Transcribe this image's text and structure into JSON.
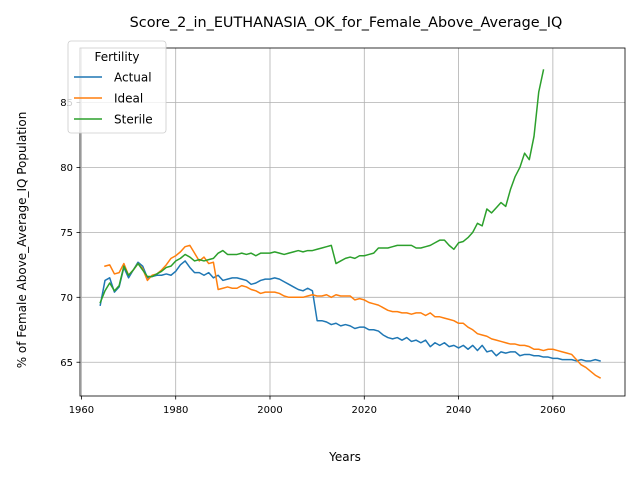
{
  "chart_data": {
    "type": "line",
    "title": "Score_2_in_EUTHANASIA_OK_for_Female_Above_Average_IQ",
    "xlabel": "Years",
    "ylabel": "% of Female Above_Average_IQ Population",
    "xlim": [
      1959.7,
      2075.3
    ],
    "ylim": [
      62.4,
      89.2
    ],
    "xticks": [
      1960,
      1980,
      2000,
      2020,
      2040,
      2060
    ],
    "yticks": [
      65,
      70,
      75,
      80,
      85
    ],
    "grid": true,
    "legend": {
      "title": "Fertility",
      "placement": "top-left"
    },
    "series": [
      {
        "name": "Actual",
        "color": "#1f77b4",
        "points": [
          [
            1964,
            69.4
          ],
          [
            1965,
            71.3
          ],
          [
            1966,
            71.5
          ],
          [
            1967,
            70.4
          ],
          [
            1968,
            70.8
          ],
          [
            1969,
            72.3
          ],
          [
            1970,
            71.5
          ],
          [
            1971,
            72.1
          ],
          [
            1972,
            72.7
          ],
          [
            1973,
            72.4
          ],
          [
            1974,
            71.5
          ],
          [
            1975,
            71.6
          ],
          [
            1976,
            71.7
          ],
          [
            1977,
            71.7
          ],
          [
            1978,
            71.8
          ],
          [
            1979,
            71.7
          ],
          [
            1980,
            72.0
          ],
          [
            1981,
            72.5
          ],
          [
            1982,
            72.8
          ],
          [
            1983,
            72.3
          ],
          [
            1984,
            71.9
          ],
          [
            1985,
            71.9
          ],
          [
            1986,
            71.7
          ],
          [
            1987,
            71.9
          ],
          [
            1988,
            71.5
          ],
          [
            1989,
            71.7
          ],
          [
            1990,
            71.3
          ],
          [
            1991,
            71.4
          ],
          [
            1992,
            71.5
          ],
          [
            1993,
            71.5
          ],
          [
            1994,
            71.4
          ],
          [
            1995,
            71.3
          ],
          [
            1996,
            71.0
          ],
          [
            1997,
            71.1
          ],
          [
            1998,
            71.3
          ],
          [
            1999,
            71.4
          ],
          [
            2000,
            71.4
          ],
          [
            2001,
            71.5
          ],
          [
            2002,
            71.4
          ],
          [
            2003,
            71.2
          ],
          [
            2004,
            71.0
          ],
          [
            2005,
            70.8
          ],
          [
            2006,
            70.6
          ],
          [
            2007,
            70.5
          ],
          [
            2008,
            70.7
          ],
          [
            2009,
            70.5
          ],
          [
            2010,
            68.2
          ],
          [
            2011,
            68.2
          ],
          [
            2012,
            68.1
          ],
          [
            2013,
            67.9
          ],
          [
            2014,
            68.0
          ],
          [
            2015,
            67.8
          ],
          [
            2016,
            67.9
          ],
          [
            2017,
            67.8
          ],
          [
            2018,
            67.6
          ],
          [
            2019,
            67.7
          ],
          [
            2020,
            67.7
          ],
          [
            2021,
            67.5
          ],
          [
            2022,
            67.5
          ],
          [
            2023,
            67.4
          ],
          [
            2024,
            67.1
          ],
          [
            2025,
            66.9
          ],
          [
            2026,
            66.8
          ],
          [
            2027,
            66.9
          ],
          [
            2028,
            66.7
          ],
          [
            2029,
            66.9
          ],
          [
            2030,
            66.6
          ],
          [
            2031,
            66.7
          ],
          [
            2032,
            66.5
          ],
          [
            2033,
            66.7
          ],
          [
            2034,
            66.2
          ],
          [
            2035,
            66.5
          ],
          [
            2036,
            66.3
          ],
          [
            2037,
            66.5
          ],
          [
            2038,
            66.2
          ],
          [
            2039,
            66.3
          ],
          [
            2040,
            66.1
          ],
          [
            2041,
            66.3
          ],
          [
            2042,
            66.0
          ],
          [
            2043,
            66.3
          ],
          [
            2044,
            65.9
          ],
          [
            2045,
            66.3
          ],
          [
            2046,
            65.8
          ],
          [
            2047,
            65.9
          ],
          [
            2048,
            65.5
          ],
          [
            2049,
            65.8
          ],
          [
            2050,
            65.7
          ],
          [
            2051,
            65.8
          ],
          [
            2052,
            65.8
          ],
          [
            2053,
            65.5
          ],
          [
            2054,
            65.6
          ],
          [
            2055,
            65.6
          ],
          [
            2056,
            65.5
          ],
          [
            2057,
            65.5
          ],
          [
            2058,
            65.4
          ],
          [
            2059,
            65.4
          ],
          [
            2060,
            65.3
          ],
          [
            2061,
            65.3
          ],
          [
            2062,
            65.2
          ],
          [
            2063,
            65.2
          ],
          [
            2064,
            65.2
          ],
          [
            2065,
            65.1
          ],
          [
            2066,
            65.2
          ],
          [
            2067,
            65.1
          ],
          [
            2068,
            65.1
          ],
          [
            2069,
            65.2
          ],
          [
            2070,
            65.1
          ]
        ]
      },
      {
        "name": "Ideal",
        "color": "#ff7f0e",
        "points": [
          [
            1965,
            72.4
          ],
          [
            1966,
            72.5
          ],
          [
            1967,
            71.8
          ],
          [
            1968,
            71.9
          ],
          [
            1969,
            72.6
          ],
          [
            1970,
            71.7
          ],
          [
            1971,
            72.1
          ],
          [
            1972,
            72.6
          ],
          [
            1973,
            72.2
          ],
          [
            1974,
            71.3
          ],
          [
            1975,
            71.7
          ],
          [
            1976,
            71.8
          ],
          [
            1977,
            72.1
          ],
          [
            1978,
            72.5
          ],
          [
            1979,
            73.0
          ],
          [
            1980,
            73.2
          ],
          [
            1981,
            73.5
          ],
          [
            1982,
            73.9
          ],
          [
            1983,
            74.0
          ],
          [
            1984,
            73.4
          ],
          [
            1985,
            72.8
          ],
          [
            1986,
            73.1
          ],
          [
            1987,
            72.6
          ],
          [
            1988,
            72.7
          ],
          [
            1989,
            70.6
          ],
          [
            1990,
            70.7
          ],
          [
            1991,
            70.8
          ],
          [
            1992,
            70.7
          ],
          [
            1993,
            70.7
          ],
          [
            1994,
            70.9
          ],
          [
            1995,
            70.8
          ],
          [
            1996,
            70.6
          ],
          [
            1997,
            70.5
          ],
          [
            1998,
            70.3
          ],
          [
            1999,
            70.4
          ],
          [
            2000,
            70.4
          ],
          [
            2001,
            70.4
          ],
          [
            2002,
            70.3
          ],
          [
            2003,
            70.1
          ],
          [
            2004,
            70.0
          ],
          [
            2005,
            70.0
          ],
          [
            2006,
            70.0
          ],
          [
            2007,
            70.0
          ],
          [
            2008,
            70.1
          ],
          [
            2009,
            70.2
          ],
          [
            2010,
            70.1
          ],
          [
            2011,
            70.1
          ],
          [
            2012,
            70.2
          ],
          [
            2013,
            70.0
          ],
          [
            2014,
            70.2
          ],
          [
            2015,
            70.1
          ],
          [
            2016,
            70.1
          ],
          [
            2017,
            70.1
          ],
          [
            2018,
            69.8
          ],
          [
            2019,
            69.9
          ],
          [
            2020,
            69.8
          ],
          [
            2021,
            69.6
          ],
          [
            2022,
            69.5
          ],
          [
            2023,
            69.4
          ],
          [
            2024,
            69.2
          ],
          [
            2025,
            69.0
          ],
          [
            2026,
            68.9
          ],
          [
            2027,
            68.9
          ],
          [
            2028,
            68.8
          ],
          [
            2029,
            68.8
          ],
          [
            2030,
            68.7
          ],
          [
            2031,
            68.8
          ],
          [
            2032,
            68.8
          ],
          [
            2033,
            68.6
          ],
          [
            2034,
            68.8
          ],
          [
            2035,
            68.5
          ],
          [
            2036,
            68.5
          ],
          [
            2037,
            68.4
          ],
          [
            2038,
            68.3
          ],
          [
            2039,
            68.2
          ],
          [
            2040,
            68.0
          ],
          [
            2041,
            68.0
          ],
          [
            2042,
            67.7
          ],
          [
            2043,
            67.5
          ],
          [
            2044,
            67.2
          ],
          [
            2045,
            67.1
          ],
          [
            2046,
            67.0
          ],
          [
            2047,
            66.8
          ],
          [
            2048,
            66.7
          ],
          [
            2049,
            66.6
          ],
          [
            2050,
            66.5
          ],
          [
            2051,
            66.4
          ],
          [
            2052,
            66.4
          ],
          [
            2053,
            66.3
          ],
          [
            2054,
            66.3
          ],
          [
            2055,
            66.2
          ],
          [
            2056,
            66.0
          ],
          [
            2057,
            66.0
          ],
          [
            2058,
            65.9
          ],
          [
            2059,
            66.0
          ],
          [
            2060,
            66.0
          ],
          [
            2061,
            65.9
          ],
          [
            2062,
            65.8
          ],
          [
            2063,
            65.7
          ],
          [
            2064,
            65.6
          ],
          [
            2065,
            65.2
          ],
          [
            2066,
            64.8
          ],
          [
            2067,
            64.6
          ],
          [
            2068,
            64.3
          ],
          [
            2069,
            64.0
          ],
          [
            2070,
            63.8
          ]
        ]
      },
      {
        "name": "Sterile",
        "color": "#2ca02c",
        "points": [
          [
            1964,
            69.6
          ],
          [
            1965,
            70.5
          ],
          [
            1966,
            71.1
          ],
          [
            1967,
            70.5
          ],
          [
            1968,
            70.9
          ],
          [
            1969,
            72.4
          ],
          [
            1970,
            71.7
          ],
          [
            1971,
            72.1
          ],
          [
            1972,
            72.6
          ],
          [
            1973,
            72.1
          ],
          [
            1974,
            71.6
          ],
          [
            1975,
            71.6
          ],
          [
            1976,
            71.8
          ],
          [
            1977,
            72.0
          ],
          [
            1978,
            72.3
          ],
          [
            1979,
            72.4
          ],
          [
            1980,
            72.8
          ],
          [
            1981,
            73.0
          ],
          [
            1982,
            73.3
          ],
          [
            1983,
            73.1
          ],
          [
            1984,
            72.8
          ],
          [
            1985,
            72.9
          ],
          [
            1986,
            72.8
          ],
          [
            1987,
            72.9
          ],
          [
            1988,
            73.0
          ],
          [
            1989,
            73.4
          ],
          [
            1990,
            73.6
          ],
          [
            1991,
            73.3
          ],
          [
            1992,
            73.3
          ],
          [
            1993,
            73.3
          ],
          [
            1994,
            73.4
          ],
          [
            1995,
            73.3
          ],
          [
            1996,
            73.4
          ],
          [
            1997,
            73.2
          ],
          [
            1998,
            73.4
          ],
          [
            1999,
            73.4
          ],
          [
            2000,
            73.4
          ],
          [
            2001,
            73.5
          ],
          [
            2002,
            73.4
          ],
          [
            2003,
            73.3
          ],
          [
            2004,
            73.4
          ],
          [
            2005,
            73.5
          ],
          [
            2006,
            73.6
          ],
          [
            2007,
            73.5
          ],
          [
            2008,
            73.6
          ],
          [
            2009,
            73.6
          ],
          [
            2010,
            73.7
          ],
          [
            2011,
            73.8
          ],
          [
            2012,
            73.9
          ],
          [
            2013,
            74.0
          ],
          [
            2014,
            72.6
          ],
          [
            2015,
            72.8
          ],
          [
            2016,
            73.0
          ],
          [
            2017,
            73.1
          ],
          [
            2018,
            73.0
          ],
          [
            2019,
            73.2
          ],
          [
            2020,
            73.2
          ],
          [
            2021,
            73.3
          ],
          [
            2022,
            73.4
          ],
          [
            2023,
            73.8
          ],
          [
            2024,
            73.8
          ],
          [
            2025,
            73.8
          ],
          [
            2026,
            73.9
          ],
          [
            2027,
            74.0
          ],
          [
            2028,
            74.0
          ],
          [
            2029,
            74.0
          ],
          [
            2030,
            74.0
          ],
          [
            2031,
            73.8
          ],
          [
            2032,
            73.8
          ],
          [
            2033,
            73.9
          ],
          [
            2034,
            74.0
          ],
          [
            2035,
            74.2
          ],
          [
            2036,
            74.4
          ],
          [
            2037,
            74.4
          ],
          [
            2038,
            74.0
          ],
          [
            2039,
            73.7
          ],
          [
            2040,
            74.2
          ],
          [
            2041,
            74.3
          ],
          [
            2042,
            74.6
          ],
          [
            2043,
            75.0
          ],
          [
            2044,
            75.7
          ],
          [
            2045,
            75.5
          ],
          [
            2046,
            76.8
          ],
          [
            2047,
            76.5
          ],
          [
            2048,
            76.9
          ],
          [
            2049,
            77.3
          ],
          [
            2050,
            77.0
          ],
          [
            2051,
            78.3
          ],
          [
            2052,
            79.3
          ],
          [
            2053,
            80.0
          ],
          [
            2054,
            81.1
          ],
          [
            2055,
            80.6
          ],
          [
            2056,
            82.4
          ],
          [
            2057,
            85.8
          ],
          [
            2058,
            87.5
          ]
        ]
      }
    ]
  }
}
